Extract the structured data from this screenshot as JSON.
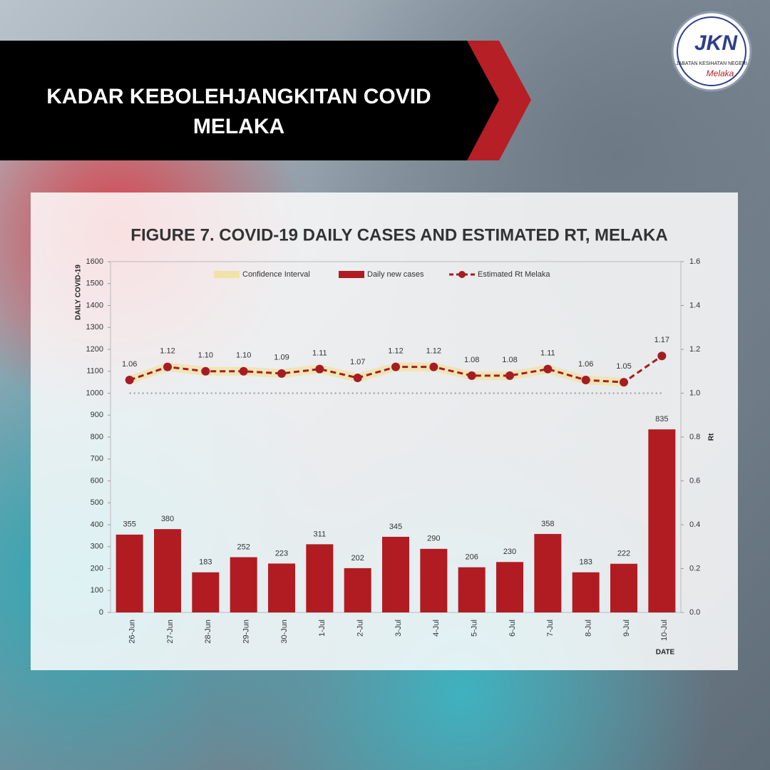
{
  "header": {
    "title": "KADAR KEBOLEHJANGKITAN COVID MELAKA"
  },
  "logo": {
    "mark": "JKN",
    "org": "JABATAN KESIHATAN NEGERI",
    "state": "Melaka"
  },
  "chart_data": {
    "type": "bar",
    "title": "FIGURE 7. COVID-19 DAILY CASES AND ESTIMATED RT, MELAKA",
    "y_label": "DAILY COVID-19",
    "y2_label": "Rt",
    "x_label": "DATE",
    "categories": [
      "26-Jun",
      "27-Jun",
      "28-Jun",
      "29-Jun",
      "30-Jun",
      "1-Jul",
      "2-Jul",
      "3-Jul",
      "4-Jul",
      "5-Jul",
      "6-Jul",
      "7-Jul",
      "8-Jul",
      "9-Jul",
      "10-Jul"
    ],
    "series": [
      {
        "name": "Confidence Interval",
        "type": "band",
        "color": "#f1e2a8",
        "axis": "y2",
        "upper": [
          1.08,
          1.14,
          1.12,
          1.12,
          1.11,
          1.13,
          1.09,
          1.14,
          1.14,
          1.1,
          1.1,
          1.13,
          1.08,
          1.07,
          null
        ],
        "lower": [
          1.04,
          1.1,
          1.08,
          1.08,
          1.07,
          1.09,
          1.05,
          1.1,
          1.1,
          1.06,
          1.06,
          1.09,
          1.04,
          1.03,
          null
        ]
      },
      {
        "name": "Daily new cases",
        "type": "bar",
        "color": "#b01c22",
        "values": [
          355,
          380,
          183,
          252,
          223,
          311,
          202,
          345,
          290,
          206,
          230,
          358,
          183,
          222,
          835
        ]
      },
      {
        "name": "Estimated Rt Melaka",
        "type": "line",
        "color": "#a51d22",
        "axis": "y2",
        "values": [
          1.06,
          1.12,
          1.1,
          1.1,
          1.09,
          1.11,
          1.07,
          1.12,
          1.12,
          1.08,
          1.08,
          1.11,
          1.06,
          1.05,
          1.17
        ],
        "value_labels": [
          "1.06",
          "1.12",
          "1.10",
          "1.10",
          "1.09",
          "1.11",
          "1.07",
          "1.12",
          "1.12",
          "1.08",
          "1.08",
          "1.11",
          "1.06",
          "1.05",
          "1.17"
        ]
      }
    ],
    "y2_reference": 1,
    "ylim": [
      0,
      1600
    ],
    "yticks": [
      0,
      100,
      200,
      300,
      400,
      500,
      600,
      700,
      800,
      900,
      1000,
      1100,
      1200,
      1300,
      1400,
      1500,
      1600
    ],
    "y2lim": [
      0,
      1.6
    ],
    "y2ticks": [
      {
        "value": 0,
        "label": "0.0"
      },
      0.2,
      0.4,
      0.6,
      0.8,
      {
        "value": 1,
        "label": "1.0"
      },
      1.2,
      1.4,
      1.6
    ],
    "legend": "top"
  }
}
